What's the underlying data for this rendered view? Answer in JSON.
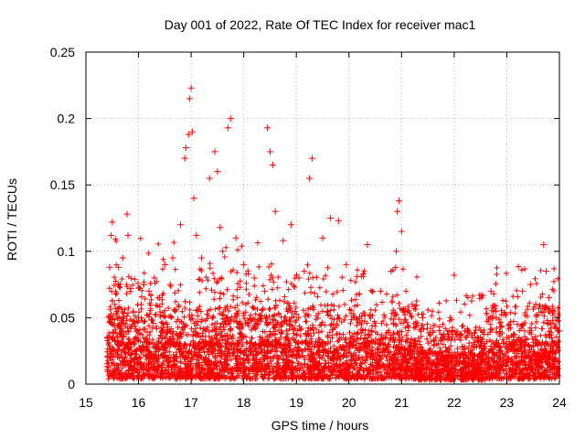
{
  "chart_data": {
    "type": "scatter",
    "title": "Day 001 of 2022, Rate Of TEC Index for receiver mac1",
    "xlabel": "GPS time / hours",
    "ylabel": "ROTI / TECUs",
    "xlim": [
      15,
      24
    ],
    "ylim": [
      0,
      0.25
    ],
    "x_ticks": [
      15,
      16,
      17,
      18,
      19,
      20,
      21,
      22,
      23,
      24
    ],
    "x_tick_labels": [
      "15",
      "16",
      "17",
      "18",
      "19",
      "20",
      "21",
      "22",
      "23",
      "24"
    ],
    "y_ticks": [
      0,
      0.05,
      0.1,
      0.15,
      0.2,
      0.25
    ],
    "y_tick_labels": [
      "0",
      "0.05",
      "0.1",
      "0.15",
      "0.2",
      "0.25"
    ],
    "grid": true,
    "marker": "+",
    "color": "#ff0000",
    "series": [
      {
        "name": "ROTI",
        "x": [
          15.45,
          15.48,
          15.5,
          15.55,
          15.6,
          15.62,
          15.7,
          15.78,
          15.8,
          15.85,
          15.9,
          16.0,
          16.05,
          16.1,
          16.2,
          16.3,
          16.4,
          16.5,
          16.6,
          16.65,
          16.8,
          16.88,
          16.9,
          16.95,
          16.97,
          17.0,
          17.02,
          17.05,
          17.1,
          17.2,
          17.35,
          17.45,
          17.5,
          17.55,
          17.6,
          17.7,
          17.75,
          17.85,
          18.0,
          18.2,
          18.4,
          18.45,
          18.5,
          18.55,
          18.6,
          18.75,
          18.9,
          19.05,
          19.15,
          19.25,
          19.3,
          19.5,
          19.65,
          19.8,
          19.95,
          20.1,
          20.35,
          20.6,
          20.8,
          20.9,
          20.92,
          20.95,
          21.0,
          21.2,
          21.4,
          21.6,
          21.9,
          22.0,
          22.2,
          22.5,
          22.7,
          22.75,
          22.8,
          23.0,
          23.3,
          23.45,
          23.55,
          23.7,
          23.75,
          23.8,
          23.9,
          24.0,
          23.95,
          23.2
        ],
        "y": [
          0.088,
          0.112,
          0.122,
          0.06,
          0.035,
          0.088,
          0.095,
          0.128,
          0.112,
          0.072,
          0.055,
          0.05,
          0.06,
          0.075,
          0.07,
          0.08,
          0.065,
          0.09,
          0.075,
          0.095,
          0.12,
          0.17,
          0.178,
          0.188,
          0.215,
          0.223,
          0.19,
          0.14,
          0.112,
          0.095,
          0.155,
          0.175,
          0.16,
          0.118,
          0.1,
          0.193,
          0.2,
          0.11,
          0.09,
          0.08,
          0.07,
          0.193,
          0.175,
          0.165,
          0.13,
          0.108,
          0.12,
          0.08,
          0.085,
          0.155,
          0.17,
          0.11,
          0.125,
          0.123,
          0.09,
          0.05,
          0.105,
          0.07,
          0.085,
          0.1,
          0.13,
          0.138,
          0.115,
          0.06,
          0.05,
          0.04,
          0.04,
          0.082,
          0.04,
          0.035,
          0.07,
          0.068,
          0.05,
          0.035,
          0.07,
          0.075,
          0.06,
          0.105,
          0.085,
          0.065,
          0.055,
          0.04,
          0.03,
          0.045
        ]
      }
    ]
  }
}
